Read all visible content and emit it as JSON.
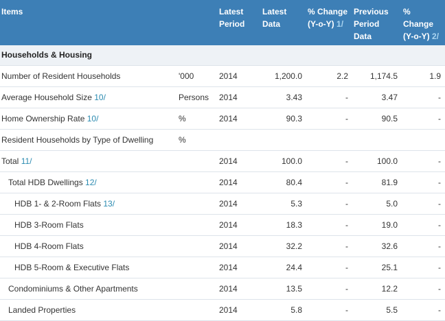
{
  "header": {
    "items": "Items",
    "unit": "",
    "latest_period_1": "Latest",
    "latest_period_2": "Period",
    "latest_data_1": "Latest",
    "latest_data_2": "Data",
    "pct_change_1": "% Change",
    "pct_change_2": "(Y-o-Y)",
    "pct_change_note": "1/",
    "prev_data_1": "Previous",
    "prev_data_2": "Period",
    "prev_data_3": "Data",
    "pct_change2_1": "%",
    "pct_change2_2": "Change",
    "pct_change2_3": "(Y-o-Y)",
    "pct_change2_note": "2/"
  },
  "section": {
    "title": "Households & Housing"
  },
  "rows": [
    {
      "label": "Number of Resident Households",
      "note": "",
      "unit": "'000",
      "period": "2014",
      "latest": "1,200.0",
      "change": "2.2",
      "previous": "1,174.5",
      "change2": "1.9"
    },
    {
      "label": "Average Household Size",
      "note": "10/",
      "unit": "Persons",
      "period": "2014",
      "latest": "3.43",
      "change": "-",
      "previous": "3.47",
      "change2": "-"
    },
    {
      "label": "Home Ownership Rate",
      "note": "10/",
      "unit": "%",
      "period": "2014",
      "latest": "90.3",
      "change": "-",
      "previous": "90.5",
      "change2": "-"
    },
    {
      "label": "Resident Households by Type of Dwelling",
      "note": "",
      "unit": "%",
      "period": "",
      "latest": "",
      "change": "",
      "previous": "",
      "change2": ""
    },
    {
      "label": "Total",
      "note": "11/",
      "unit": "",
      "period": "2014",
      "latest": "100.0",
      "change": "-",
      "previous": "100.0",
      "change2": "-"
    },
    {
      "label": "Total HDB Dwellings",
      "note": "12/",
      "unit": "",
      "period": "2014",
      "latest": "80.4",
      "change": "-",
      "previous": "81.9",
      "change2": "-"
    },
    {
      "label": "HDB 1- & 2-Room Flats",
      "note": "13/",
      "unit": "",
      "period": "2014",
      "latest": "5.3",
      "change": "-",
      "previous": "5.0",
      "change2": "-"
    },
    {
      "label": "HDB 3-Room Flats",
      "note": "",
      "unit": "",
      "period": "2014",
      "latest": "18.3",
      "change": "-",
      "previous": "19.0",
      "change2": "-"
    },
    {
      "label": "HDB 4-Room Flats",
      "note": "",
      "unit": "",
      "period": "2014",
      "latest": "32.2",
      "change": "-",
      "previous": "32.6",
      "change2": "-"
    },
    {
      "label": "HDB 5-Room & Executive Flats",
      "note": "",
      "unit": "",
      "period": "2014",
      "latest": "24.4",
      "change": "-",
      "previous": "25.1",
      "change2": "-"
    },
    {
      "label": "Condominiums & Other Apartments",
      "note": "",
      "unit": "",
      "period": "2014",
      "latest": "13.5",
      "change": "-",
      "previous": "12.2",
      "change2": "-"
    },
    {
      "label": "Landed Properties",
      "note": "",
      "unit": "",
      "period": "2014",
      "latest": "5.8",
      "change": "-",
      "previous": "5.5",
      "change2": "-"
    }
  ]
}
